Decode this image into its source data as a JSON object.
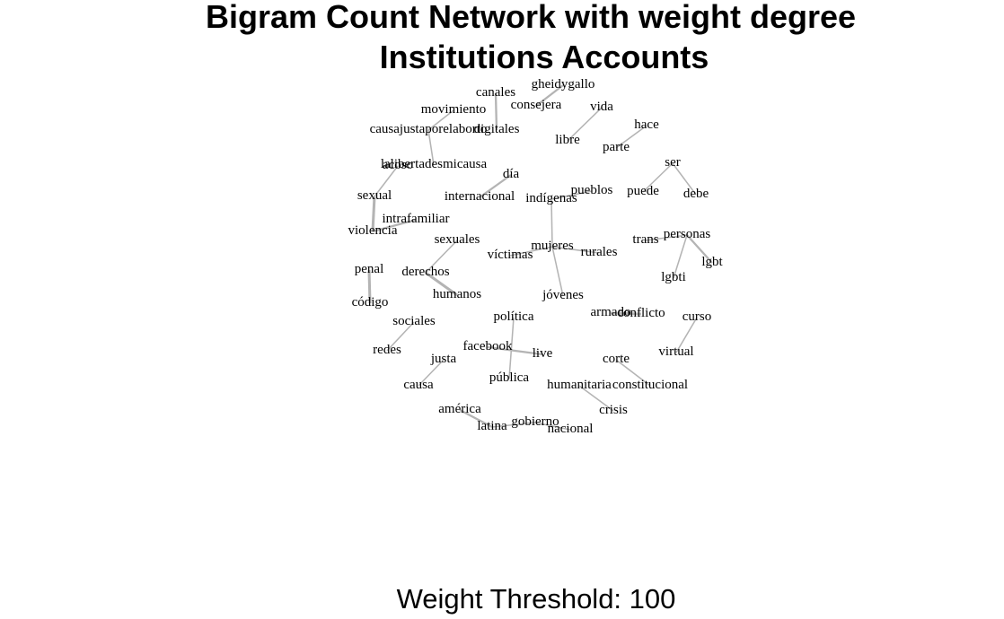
{
  "title_line1": "Bigram Count Network with weight degree",
  "title_line2": "Institutions Accounts",
  "caption": "Weight Threshold: 100",
  "colors": {
    "edge": "#b4b4b4",
    "text": "#000000",
    "background": "#ffffff"
  },
  "nodes": [
    {
      "id": "gheidygallo",
      "label": "gheidygallo"
    },
    {
      "id": "canales",
      "label": "canales"
    },
    {
      "id": "consejera",
      "label": "consejera"
    },
    {
      "id": "movimiento",
      "label": "movimiento"
    },
    {
      "id": "vida",
      "label": "vida"
    },
    {
      "id": "hace",
      "label": "hace"
    },
    {
      "id": "causajustaporelaborto",
      "label": "causajustaporelaborto"
    },
    {
      "id": "digitales",
      "label": "digitales"
    },
    {
      "id": "libre",
      "label": "libre"
    },
    {
      "id": "parte",
      "label": "parte"
    },
    {
      "id": "ser",
      "label": "ser"
    },
    {
      "id": "acoso",
      "label": "acoso"
    },
    {
      "id": "lalibertadesmicausa",
      "label": "lalibertadesmicausa"
    },
    {
      "id": "dia",
      "label": "día"
    },
    {
      "id": "sexual",
      "label": "sexual"
    },
    {
      "id": "internacional",
      "label": "internacional"
    },
    {
      "id": "indigenas",
      "label": "indígenas"
    },
    {
      "id": "pueblos",
      "label": "pueblos"
    },
    {
      "id": "puede",
      "label": "puede"
    },
    {
      "id": "debe",
      "label": "debe"
    },
    {
      "id": "intrafamiliar",
      "label": "intrafamiliar"
    },
    {
      "id": "violencia",
      "label": "violencia"
    },
    {
      "id": "sexuales",
      "label": "sexuales"
    },
    {
      "id": "mujeres",
      "label": "mujeres"
    },
    {
      "id": "victimas",
      "label": "víctimas"
    },
    {
      "id": "rurales",
      "label": "rurales"
    },
    {
      "id": "trans",
      "label": "trans"
    },
    {
      "id": "personas",
      "label": "personas"
    },
    {
      "id": "lgbt",
      "label": "lgbt"
    },
    {
      "id": "penal",
      "label": "penal"
    },
    {
      "id": "derechos",
      "label": "derechos"
    },
    {
      "id": "lgbti",
      "label": "lgbti"
    },
    {
      "id": "humanos",
      "label": "humanos"
    },
    {
      "id": "jovenes",
      "label": "jóvenes"
    },
    {
      "id": "codigo",
      "label": "código"
    },
    {
      "id": "armado",
      "label": "armado"
    },
    {
      "id": "conflicto",
      "label": "conflicto"
    },
    {
      "id": "politica",
      "label": "política"
    },
    {
      "id": "curso",
      "label": "curso"
    },
    {
      "id": "sociales",
      "label": "sociales"
    },
    {
      "id": "facebook",
      "label": "facebook"
    },
    {
      "id": "redes",
      "label": "redes"
    },
    {
      "id": "live",
      "label": "live"
    },
    {
      "id": "virtual",
      "label": "virtual"
    },
    {
      "id": "justa",
      "label": "justa"
    },
    {
      "id": "corte",
      "label": "corte"
    },
    {
      "id": "publica",
      "label": "pública"
    },
    {
      "id": "causa",
      "label": "causa"
    },
    {
      "id": "humanitaria",
      "label": "humanitaria"
    },
    {
      "id": "constitucional",
      "label": "constitucional"
    },
    {
      "id": "america",
      "label": "américa"
    },
    {
      "id": "crisis",
      "label": "crisis"
    },
    {
      "id": "gobierno",
      "label": "gobierno"
    },
    {
      "id": "latina",
      "label": "latina"
    },
    {
      "id": "nacional",
      "label": "nacional"
    }
  ],
  "edges": [
    {
      "from": "canales",
      "to": "digitales",
      "weight": 2
    },
    {
      "from": "gheidygallo",
      "to": "consejera",
      "weight": 2
    },
    {
      "from": "movimiento",
      "to": "causajustaporelaborto",
      "weight": 1
    },
    {
      "from": "causajustaporelaborto",
      "to": "lalibertadesmicausa",
      "weight": 1
    },
    {
      "from": "vida",
      "to": "libre",
      "weight": 1
    },
    {
      "from": "hace",
      "to": "parte",
      "weight": 1
    },
    {
      "from": "ser",
      "to": "puede",
      "weight": 1
    },
    {
      "from": "ser",
      "to": "debe",
      "weight": 1
    },
    {
      "from": "acoso",
      "to": "sexual",
      "weight": 1
    },
    {
      "from": "sexual",
      "to": "violencia",
      "weight": 3
    },
    {
      "from": "violencia",
      "to": "intrafamiliar",
      "weight": 2
    },
    {
      "from": "dia",
      "to": "internacional",
      "weight": 2
    },
    {
      "from": "pueblos",
      "to": "indigenas",
      "weight": 1
    },
    {
      "from": "indigenas",
      "to": "mujeres",
      "weight": 1
    },
    {
      "from": "mujeres",
      "to": "victimas",
      "weight": 1
    },
    {
      "from": "mujeres",
      "to": "rurales",
      "weight": 1
    },
    {
      "from": "mujeres",
      "to": "jovenes",
      "weight": 1
    },
    {
      "from": "sexuales",
      "to": "derechos",
      "weight": 1
    },
    {
      "from": "derechos",
      "to": "humanos",
      "weight": 3
    },
    {
      "from": "trans",
      "to": "personas",
      "weight": 1
    },
    {
      "from": "personas",
      "to": "lgbt",
      "weight": 2
    },
    {
      "from": "personas",
      "to": "lgbti",
      "weight": 1
    },
    {
      "from": "penal",
      "to": "codigo",
      "weight": 3
    },
    {
      "from": "armado",
      "to": "conflicto",
      "weight": 3
    },
    {
      "from": "curso",
      "to": "virtual",
      "weight": 1
    },
    {
      "from": "sociales",
      "to": "redes",
      "weight": 1
    },
    {
      "from": "politica",
      "to": "publica",
      "weight": 1
    },
    {
      "from": "facebook",
      "to": "live",
      "weight": 2
    },
    {
      "from": "justa",
      "to": "causa",
      "weight": 1
    },
    {
      "from": "corte",
      "to": "constitucional",
      "weight": 1
    },
    {
      "from": "humanitaria",
      "to": "crisis",
      "weight": 1
    },
    {
      "from": "america",
      "to": "latina",
      "weight": 2
    },
    {
      "from": "latina",
      "to": "gobierno",
      "weight": 1
    },
    {
      "from": "gobierno",
      "to": "nacional",
      "weight": 1
    }
  ]
}
